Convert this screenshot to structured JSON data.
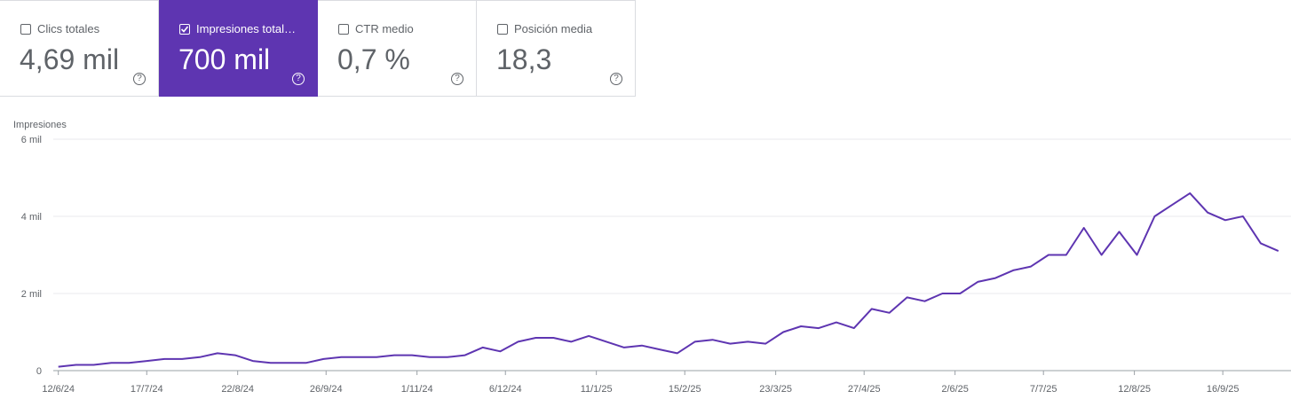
{
  "cards": [
    {
      "label": "Clics totales",
      "value": "4,69 mil",
      "selected": false
    },
    {
      "label": "Impresiones total…",
      "value": "700 mil",
      "selected": true
    },
    {
      "label": "CTR medio",
      "value": "0,7 %",
      "selected": false
    },
    {
      "label": "Posición media",
      "value": "18,3",
      "selected": false
    }
  ],
  "chart_data": {
    "type": "line",
    "y_label": "Impresiones",
    "x": [
      "12/6/24",
      "19/6/24",
      "26/6/24",
      "3/7/24",
      "10/7/24",
      "17/7/24",
      "24/7/24",
      "31/7/24",
      "7/8/24",
      "14/8/24",
      "21/8/24",
      "28/8/24",
      "4/9/24",
      "11/9/24",
      "18/9/24",
      "25/9/24",
      "2/10/24",
      "9/10/24",
      "16/10/24",
      "23/10/24",
      "30/10/24",
      "6/11/24",
      "13/11/24",
      "20/11/24",
      "27/11/24",
      "4/12/24",
      "11/12/24",
      "18/12/24",
      "25/12/24",
      "1/1/25",
      "8/1/25",
      "15/1/25",
      "22/1/25",
      "29/1/25",
      "5/2/25",
      "12/2/25",
      "19/2/25",
      "26/2/25",
      "5/3/25",
      "12/3/25",
      "19/3/25",
      "26/3/25",
      "2/4/25",
      "9/4/25",
      "16/4/25",
      "23/4/25",
      "30/4/25",
      "7/5/25",
      "14/5/25",
      "21/5/25",
      "28/5/25",
      "4/6/25",
      "11/6/25",
      "18/6/25",
      "25/6/25",
      "2/7/25",
      "9/7/25",
      "16/7/25",
      "23/7/25",
      "30/7/25",
      "6/8/25",
      "13/8/25",
      "20/8/25",
      "27/8/25",
      "3/9/25",
      "10/9/25",
      "17/9/25",
      "24/9/25",
      "1/10/25",
      "8/10/25"
    ],
    "series": [
      {
        "name": "Impresiones",
        "color": "#5e35b1",
        "values": [
          100,
          150,
          150,
          200,
          200,
          250,
          300,
          300,
          350,
          450,
          400,
          250,
          200,
          200,
          200,
          300,
          350,
          350,
          350,
          400,
          400,
          350,
          350,
          400,
          600,
          500,
          750,
          850,
          850,
          750,
          900,
          750,
          600,
          650,
          550,
          450,
          750,
          800,
          700,
          750,
          700,
          1000,
          1150,
          1100,
          1250,
          1100,
          1600,
          1500,
          1900,
          1800,
          2000,
          2000,
          2300,
          2400,
          2600,
          2700,
          3000,
          3000,
          3700,
          3000,
          3600,
          3000,
          4000,
          4300,
          4600,
          4100,
          3900,
          4000,
          3300,
          3100
        ]
      }
    ],
    "xlim": [
      "10/6/24",
      "13/10/25"
    ],
    "xticks": [
      "12/6/24",
      "17/7/24",
      "22/8/24",
      "26/9/24",
      "1/11/24",
      "6/12/24",
      "11/1/25",
      "15/2/25",
      "23/3/25",
      "27/4/25",
      "2/6/25",
      "7/7/25",
      "12/8/25",
      "16/9/25"
    ],
    "ylim": [
      0,
      6000
    ],
    "yticks": [
      0,
      {
        "value": 2000,
        "label": "2 mil"
      },
      {
        "value": 4000,
        "label": "4 mil"
      },
      {
        "value": 6000,
        "label": "6 mil"
      }
    ],
    "grid": true
  }
}
